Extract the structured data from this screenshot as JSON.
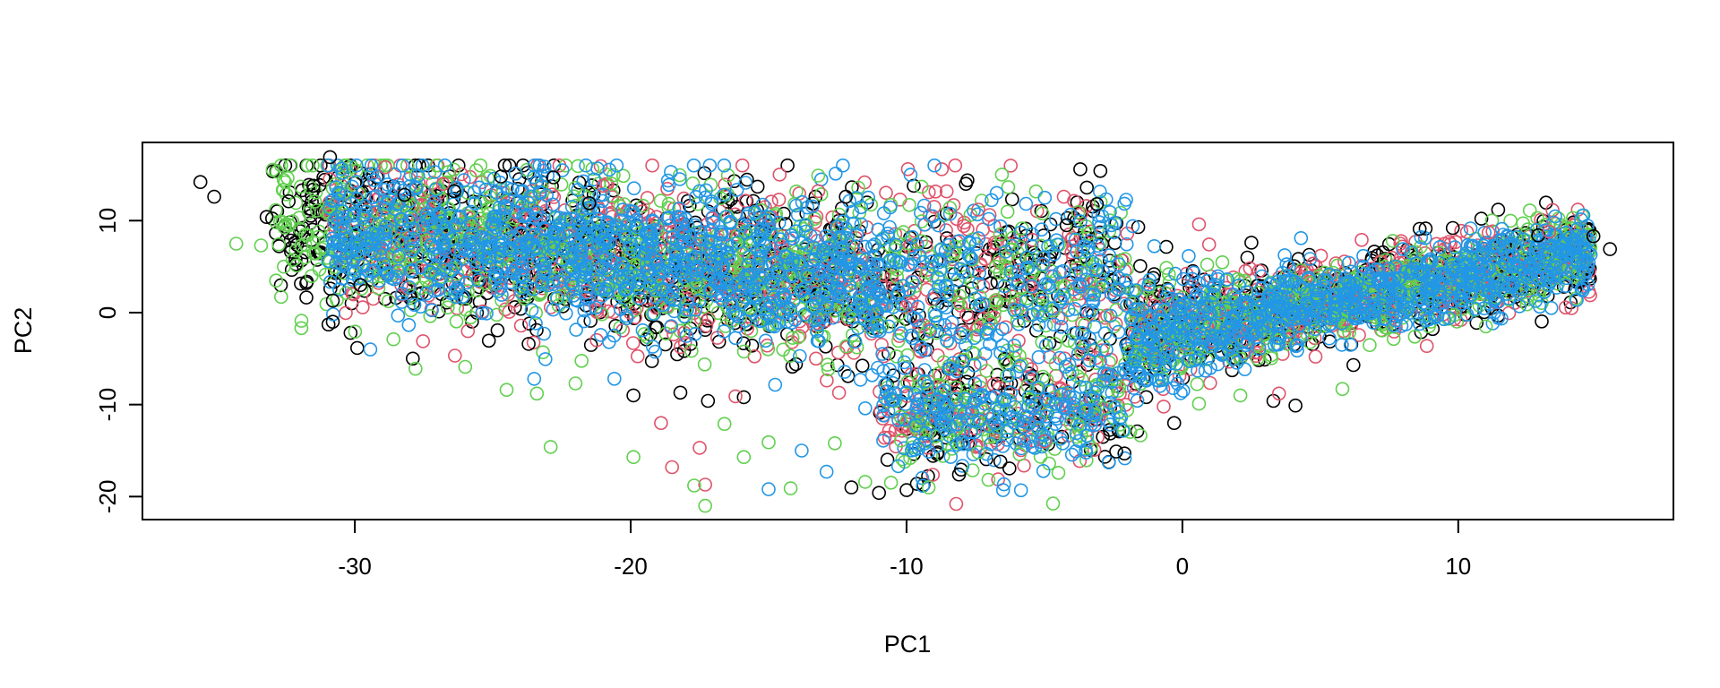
{
  "chart_data": {
    "type": "scatter",
    "title": "",
    "xlabel": "PC1",
    "ylabel": "PC2",
    "xlim": [
      -37.7,
      17.8
    ],
    "ylim": [
      -22.5,
      18.5
    ],
    "x_ticks": [
      -30,
      -20,
      -10,
      0,
      10
    ],
    "x_tick_labels": [
      "-30",
      "-20",
      "-10",
      "0",
      "10"
    ],
    "y_ticks": [
      -20,
      -10,
      0,
      10
    ],
    "y_tick_labels": [
      "-20",
      "-10",
      "0",
      "10"
    ],
    "marker": "open-circle",
    "grid": false,
    "legend": "none",
    "series": [
      {
        "color": "#000000",
        "points": [
          [
            -35.6,
            14.2
          ],
          [
            -35.1,
            12.6
          ],
          [
            -33.2,
            10.4
          ],
          [
            -32.4,
            12.1
          ],
          [
            -31.5,
            13.8
          ],
          [
            -30.9,
            16.9
          ],
          [
            -30.8,
            1.3
          ],
          [
            -30.8,
            -1.0
          ],
          [
            -29.8,
            3.0
          ],
          [
            -28.2,
            12.8
          ],
          [
            -27.9,
            -5.0
          ],
          [
            -26.4,
            13.2
          ],
          [
            -24.7,
            14.8
          ],
          [
            -23.7,
            -3.4
          ],
          [
            -22.8,
            14.7
          ],
          [
            -21.5,
            11.9
          ],
          [
            -19.9,
            -9.0
          ],
          [
            -18.2,
            -8.7
          ],
          [
            -17.2,
            -9.6
          ],
          [
            -15.9,
            -9.2
          ],
          [
            -12.2,
            12.6
          ],
          [
            -12.0,
            -19.0
          ],
          [
            -11.0,
            -19.6
          ],
          [
            -10.0,
            -19.3
          ],
          [
            -8.1,
            -17.6
          ],
          [
            -6.6,
            -16.2
          ],
          [
            -4.2,
            9.5
          ],
          [
            -3.1,
            11.8
          ],
          [
            -2.4,
            -15.1
          ],
          [
            -1.6,
            9.3
          ],
          [
            -0.3,
            -12.0
          ],
          [
            2.5,
            7.6
          ],
          [
            3.3,
            -9.6
          ],
          [
            4.1,
            -10.1
          ],
          [
            6.2,
            -5.7
          ],
          [
            8.6,
            9.1
          ],
          [
            9.8,
            9.2
          ],
          [
            12.9,
            8.4
          ],
          [
            14.9,
            8.3
          ],
          [
            15.5,
            6.9
          ]
        ]
      },
      {
        "color": "#DF536B",
        "points": [
          [
            -28.9,
            15.8
          ],
          [
            -26.8,
            14.0
          ],
          [
            -21.0,
            13.8
          ],
          [
            -18.9,
            -12.0
          ],
          [
            -18.5,
            -16.8
          ],
          [
            -17.5,
            -14.7
          ],
          [
            -17.3,
            -18.7
          ],
          [
            -16.2,
            -9.1
          ],
          [
            -14.6,
            15.0
          ],
          [
            -13.2,
            13.2
          ],
          [
            -9.0,
            11.5
          ],
          [
            -7.4,
            11.2
          ],
          [
            -8.2,
            -20.8
          ],
          [
            -5.0,
            -14.0
          ],
          [
            -4.3,
            12.6
          ],
          [
            -2.0,
            8.6
          ],
          [
            0.6,
            9.6
          ],
          [
            3.5,
            -8.8
          ],
          [
            6.5,
            7.9
          ],
          [
            11.1,
            8.7
          ],
          [
            13.3,
            8.8
          ]
        ]
      },
      {
        "color": "#61D04F",
        "points": [
          [
            -34.3,
            7.5
          ],
          [
            -33.4,
            7.3
          ],
          [
            -31.8,
            6.0
          ],
          [
            -28.6,
            -2.9
          ],
          [
            -27.8,
            -6.1
          ],
          [
            -26.0,
            -5.9
          ],
          [
            -24.5,
            -8.4
          ],
          [
            -23.4,
            -8.8
          ],
          [
            -22.9,
            -14.6
          ],
          [
            -22.0,
            -7.7
          ],
          [
            -19.9,
            -15.7
          ],
          [
            -17.7,
            -18.8
          ],
          [
            -17.3,
            -21.0
          ],
          [
            -16.6,
            -12.1
          ],
          [
            -15.9,
            -15.7
          ],
          [
            -15.0,
            -14.1
          ],
          [
            -14.2,
            -19.1
          ],
          [
            -13.2,
            14.9
          ],
          [
            -12.6,
            -14.2
          ],
          [
            -11.5,
            -18.4
          ],
          [
            -10.2,
            -13.9
          ],
          [
            -9.2,
            -19.0
          ],
          [
            -7.4,
            -15.2
          ],
          [
            -5.9,
            -15.4
          ],
          [
            -3.8,
            -12.2
          ],
          [
            -2.0,
            -10.6
          ],
          [
            0.6,
            -9.9
          ],
          [
            2.1,
            -9.0
          ],
          [
            5.8,
            -8.3
          ],
          [
            11.0,
            -1.5
          ]
        ]
      },
      {
        "color": "#2297E6",
        "points": [
          [
            -30.1,
            13.7
          ],
          [
            -29.3,
            14.4
          ],
          [
            -25.5,
            13.6
          ],
          [
            -23.5,
            -7.2
          ],
          [
            -20.6,
            -2.5
          ],
          [
            -19.2,
            -3.7
          ],
          [
            -15.3,
            10.4
          ],
          [
            -15.0,
            -19.2
          ],
          [
            -13.8,
            -15.0
          ],
          [
            -12.9,
            -17.3
          ],
          [
            -11.5,
            -10.4
          ],
          [
            -10.3,
            -16.7
          ],
          [
            -8.9,
            -14.5
          ],
          [
            -6.5,
            -19.3
          ],
          [
            -5.1,
            -13.2
          ],
          [
            -4.6,
            -12.1
          ],
          [
            -3.5,
            -14.9
          ],
          [
            -1.8,
            9.4
          ],
          [
            4.3,
            8.1
          ],
          [
            8.0,
            6.9
          ],
          [
            12.0,
            6.0
          ],
          [
            13.9,
            6.2
          ]
        ]
      }
    ],
    "clouds": [
      {
        "color": "#000000",
        "count": 1500,
        "x": [
          -33,
          14.8
        ],
        "seed": 11
      },
      {
        "color": "#DF536B",
        "count": 1300,
        "x": [
          -31,
          14.8
        ],
        "seed": 23
      },
      {
        "color": "#61D04F",
        "count": 1600,
        "x": [
          -33,
          14.8
        ],
        "seed": 37
      },
      {
        "color": "#2297E6",
        "count": 2200,
        "x": [
          -31,
          14.8
        ],
        "seed": 51
      }
    ]
  }
}
